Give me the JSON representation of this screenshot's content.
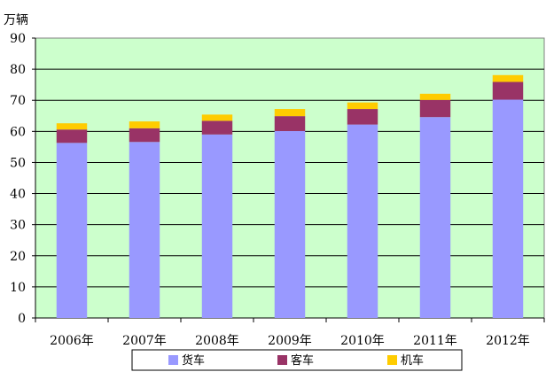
{
  "chart_data": {
    "type": "bar",
    "stacked": true,
    "unit_label": "万辆",
    "categories": [
      "2006年",
      "2007年",
      "2008年",
      "2009年",
      "2010年",
      "2011年",
      "2012年"
    ],
    "series": [
      {
        "name": "货车",
        "color": "#9999ff",
        "values": [
          56.3,
          56.6,
          59.0,
          60.1,
          62.2,
          64.6,
          70.2
        ]
      },
      {
        "name": "客车",
        "color": "#993366",
        "values": [
          4.3,
          4.4,
          4.4,
          4.8,
          5.0,
          5.5,
          5.7
        ]
      },
      {
        "name": "机车",
        "color": "#ffcc00",
        "values": [
          2.0,
          2.2,
          2.0,
          2.3,
          2.1,
          2.0,
          2.2
        ]
      }
    ],
    "ylim": [
      0,
      90
    ],
    "yticks": [
      "0",
      "10",
      "20",
      "30",
      "40",
      "50",
      "60",
      "70",
      "80",
      "90"
    ],
    "grid": true,
    "plot_background": "#ccffcc",
    "legend_position": "bottom"
  }
}
